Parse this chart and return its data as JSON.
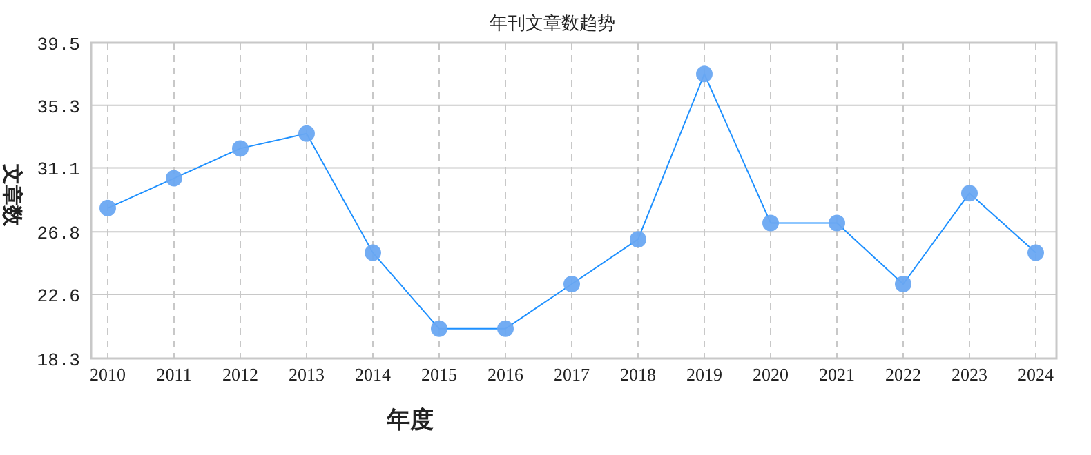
{
  "chart_data": {
    "type": "line",
    "title": "年刊文章数趋势",
    "xlabel": "年度",
    "ylabel": "文章数",
    "categories": [
      "2010",
      "2011",
      "2012",
      "2013",
      "2014",
      "2015",
      "2016",
      "2017",
      "2018",
      "2019",
      "2020",
      "2021",
      "2022",
      "2023",
      "2024"
    ],
    "series": [
      {
        "color": "#1e90ff",
        "values": [
          28.4,
          30.4,
          32.4,
          33.4,
          25.4,
          20.3,
          20.3,
          23.3,
          26.3,
          37.4,
          27.4,
          27.4,
          23.3,
          29.4,
          25.4
        ]
      }
    ],
    "ylim": [
      18.3,
      39.5
    ],
    "yticks": [
      18.3,
      22.6,
      26.8,
      31.1,
      35.3,
      39.5
    ],
    "grid": true,
    "marker": "circle",
    "line_style": "solid"
  }
}
